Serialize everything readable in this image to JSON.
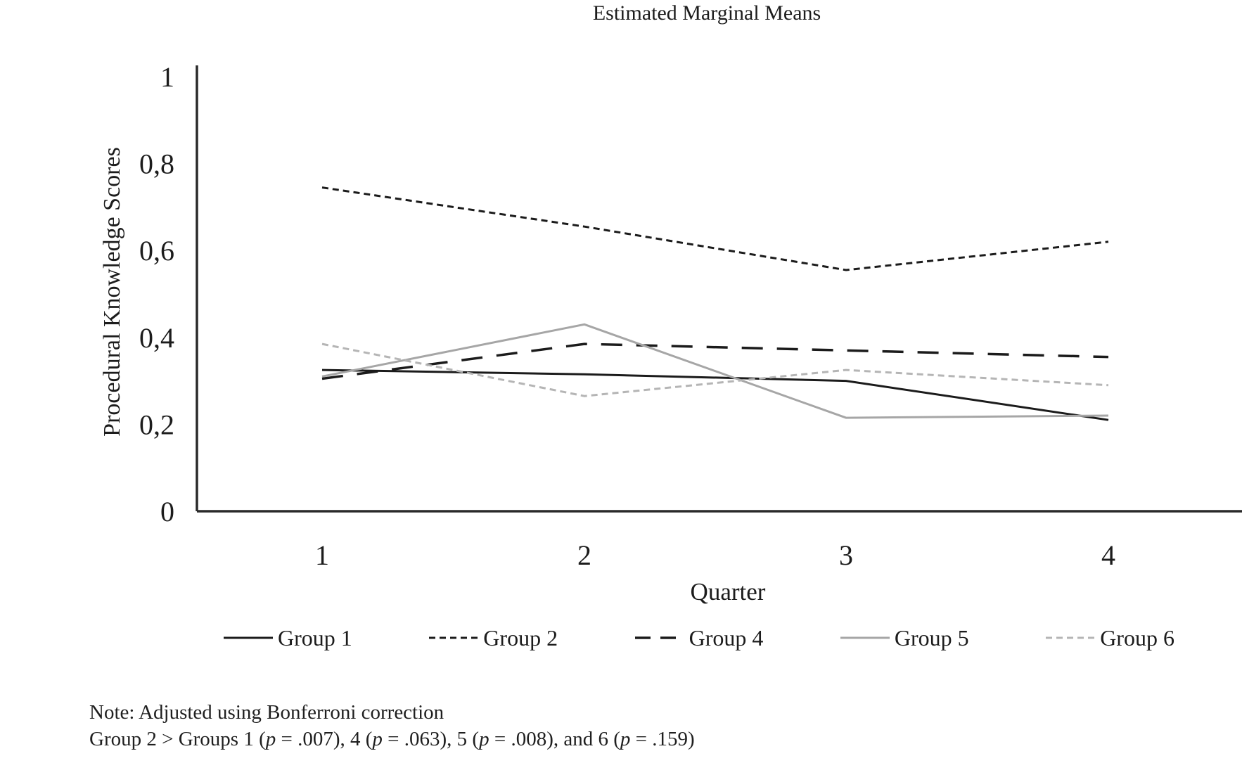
{
  "title": "Estimated Marginal Means",
  "chart_data": {
    "type": "line",
    "title": "Estimated Marginal Means",
    "xlabel": "Quarter",
    "ylabel": "Procedural Knowledge Scores",
    "x": [
      1,
      2,
      3,
      4
    ],
    "xtick_labels": [
      "1",
      "2",
      "3",
      "4"
    ],
    "ytick_labels": [
      "0",
      "0,2",
      "0,4",
      "0,6",
      "0,8",
      "1"
    ],
    "ylim": [
      0,
      1
    ],
    "grid": false,
    "legend_position": "bottom",
    "axis_color": "#2a2a2a",
    "series": [
      {
        "name": "Group 1",
        "color": "#1b1b1b",
        "style": "solid",
        "values": [
          0.325,
          0.315,
          0.3,
          0.21
        ]
      },
      {
        "name": "Group 2",
        "color": "#1b1b1b",
        "style": "dotted",
        "values": [
          0.745,
          0.655,
          0.555,
          0.62
        ]
      },
      {
        "name": "Group 4",
        "color": "#1b1b1b",
        "style": "dashed",
        "values": [
          0.305,
          0.385,
          0.37,
          0.355
        ]
      },
      {
        "name": "Group 5",
        "color": "#a6a6a6",
        "style": "solid",
        "values": [
          0.31,
          0.43,
          0.215,
          0.22
        ]
      },
      {
        "name": "Group 6",
        "color": "#b5b5b5",
        "style": "dotted",
        "values": [
          0.385,
          0.265,
          0.325,
          0.29
        ]
      }
    ]
  },
  "notes": {
    "line1": "Note: Adjusted using Bonferroni correction",
    "line2_segments": [
      {
        "text": "Group 2 > Groups 1 ("
      },
      {
        "text": "p",
        "italic": true
      },
      {
        "text": " = .007), 4 ("
      },
      {
        "text": "p",
        "italic": true
      },
      {
        "text": " = .063), 5 ("
      },
      {
        "text": "p",
        "italic": true
      },
      {
        "text": " = .008), and 6 ("
      },
      {
        "text": "p",
        "italic": true
      },
      {
        "text": " = .159)"
      }
    ]
  }
}
